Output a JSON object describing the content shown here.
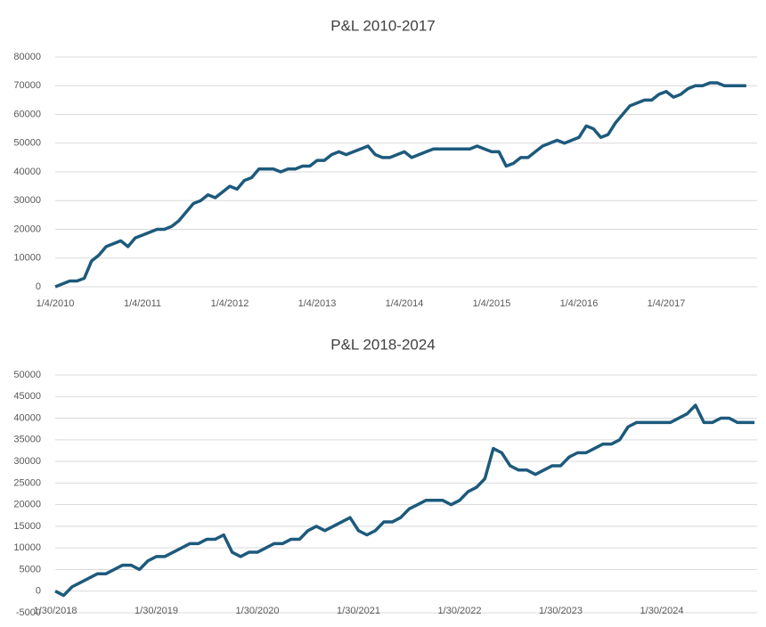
{
  "chart_data": [
    {
      "type": "line",
      "title": "P&L 2010-2017",
      "color": "#1d5a7c",
      "grid": true,
      "ylim": [
        0,
        80000
      ],
      "yticks": [
        0,
        10000,
        20000,
        30000,
        40000,
        50000,
        60000,
        70000,
        80000
      ],
      "categories": [
        "1/4/2010",
        null,
        null,
        null,
        null,
        null,
        null,
        null,
        null,
        null,
        null,
        null,
        "1/4/2011",
        null,
        null,
        null,
        null,
        null,
        null,
        null,
        null,
        null,
        null,
        null,
        "1/4/2012",
        null,
        null,
        null,
        null,
        null,
        null,
        null,
        null,
        null,
        null,
        null,
        "1/4/2013",
        null,
        null,
        null,
        null,
        null,
        null,
        null,
        null,
        null,
        null,
        null,
        "1/4/2014",
        null,
        null,
        null,
        null,
        null,
        null,
        null,
        null,
        null,
        null,
        null,
        "1/4/2015",
        null,
        null,
        null,
        null,
        null,
        null,
        null,
        null,
        null,
        null,
        null,
        "1/4/2016",
        null,
        null,
        null,
        null,
        null,
        null,
        null,
        null,
        null,
        null,
        null,
        "1/4/2017",
        null,
        null,
        null,
        null,
        null,
        null,
        null,
        null,
        null,
        null,
        null
      ],
      "values": [
        0,
        1000,
        2000,
        2000,
        3000,
        9000,
        11000,
        14000,
        15000,
        16000,
        14000,
        17000,
        18000,
        19000,
        20000,
        20000,
        21000,
        23000,
        26000,
        29000,
        30000,
        32000,
        31000,
        33000,
        35000,
        34000,
        37000,
        38000,
        41000,
        41000,
        41000,
        40000,
        41000,
        41000,
        42000,
        42000,
        44000,
        44000,
        46000,
        47000,
        46000,
        47000,
        48000,
        49000,
        46000,
        45000,
        45000,
        46000,
        47000,
        45000,
        46000,
        47000,
        48000,
        48000,
        48000,
        48000,
        48000,
        48000,
        49000,
        48000,
        47000,
        47000,
        42000,
        43000,
        45000,
        45000,
        47000,
        49000,
        50000,
        51000,
        50000,
        51000,
        52000,
        56000,
        55000,
        52000,
        53000,
        57000,
        60000,
        63000,
        64000,
        65000,
        65000,
        67000,
        68000,
        66000,
        67000,
        69000,
        70000,
        70000,
        71000,
        71000,
        70000,
        70000,
        70000,
        70000
      ]
    },
    {
      "type": "line",
      "title": "P&L 2018-2024",
      "color": "#1d5a7c",
      "grid": true,
      "ylim": [
        -5000,
        50000
      ],
      "yticks": [
        -5000,
        0,
        5000,
        10000,
        15000,
        20000,
        25000,
        30000,
        35000,
        40000,
        45000,
        50000
      ],
      "categories": [
        "1/30/2018",
        null,
        null,
        null,
        null,
        null,
        null,
        null,
        null,
        null,
        null,
        null,
        "1/30/2019",
        null,
        null,
        null,
        null,
        null,
        null,
        null,
        null,
        null,
        null,
        null,
        "1/30/2020",
        null,
        null,
        null,
        null,
        null,
        null,
        null,
        null,
        null,
        null,
        null,
        "1/30/2021",
        null,
        null,
        null,
        null,
        null,
        null,
        null,
        null,
        null,
        null,
        null,
        "1/30/2022",
        null,
        null,
        null,
        null,
        null,
        null,
        null,
        null,
        null,
        null,
        null,
        "1/30/2023",
        null,
        null,
        null,
        null,
        null,
        null,
        null,
        null,
        null,
        null,
        null,
        "1/30/2024",
        null,
        null,
        null,
        null,
        null,
        null,
        null,
        null,
        null,
        null,
        null
      ],
      "values": [
        0,
        -1000,
        1000,
        2000,
        3000,
        4000,
        4000,
        5000,
        6000,
        6000,
        5000,
        7000,
        8000,
        8000,
        9000,
        10000,
        11000,
        11000,
        12000,
        12000,
        13000,
        9000,
        8000,
        9000,
        9000,
        10000,
        11000,
        11000,
        12000,
        12000,
        14000,
        15000,
        14000,
        15000,
        16000,
        17000,
        14000,
        13000,
        14000,
        16000,
        16000,
        17000,
        19000,
        20000,
        21000,
        21000,
        21000,
        20000,
        21000,
        23000,
        24000,
        26000,
        33000,
        32000,
        29000,
        28000,
        28000,
        27000,
        28000,
        29000,
        29000,
        31000,
        32000,
        32000,
        33000,
        34000,
        34000,
        35000,
        38000,
        39000,
        39000,
        39000,
        39000,
        39000,
        40000,
        41000,
        43000,
        39000,
        39000,
        40000,
        40000,
        39000,
        39000,
        39000
      ]
    }
  ]
}
